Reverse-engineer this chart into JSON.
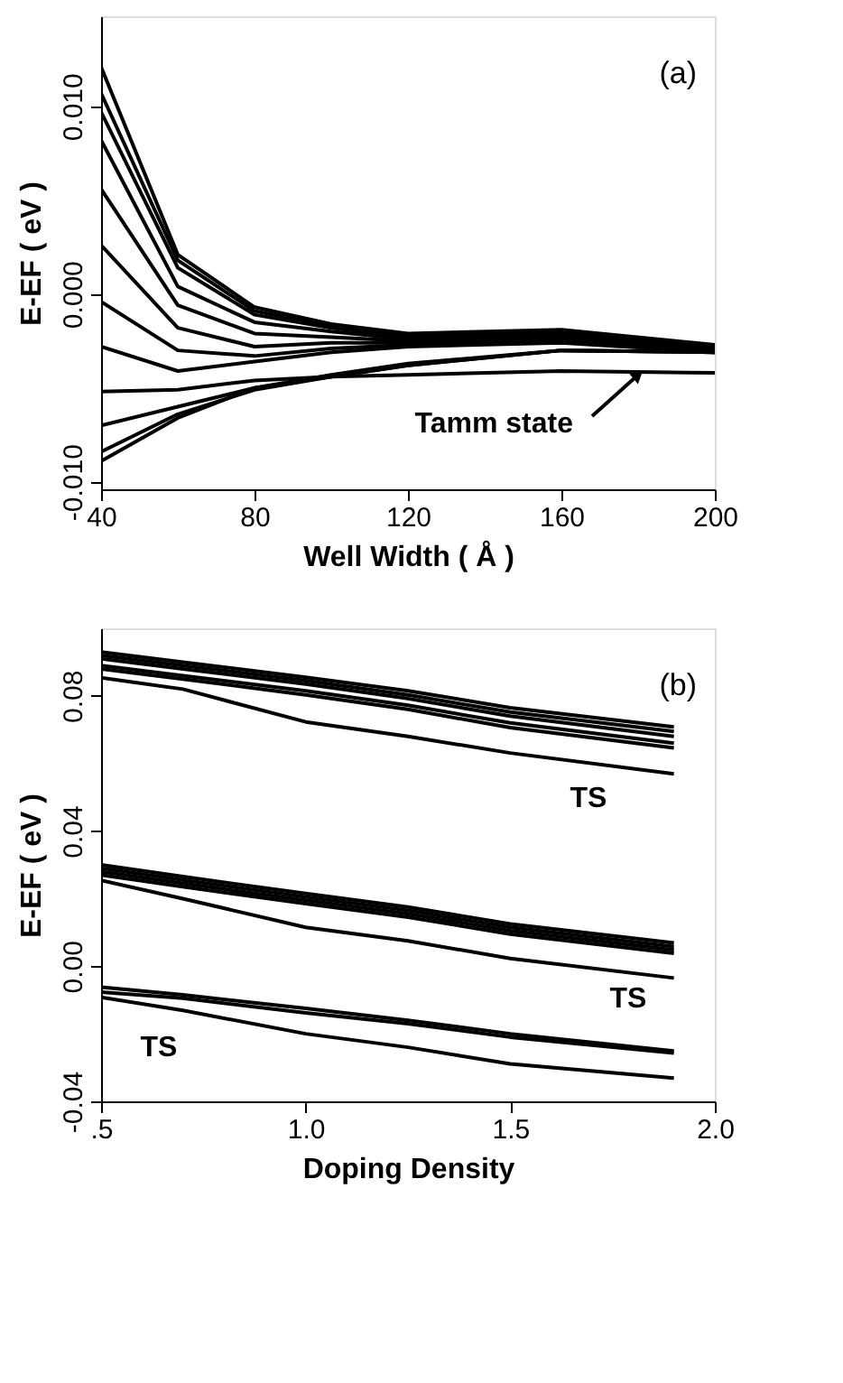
{
  "chart_data": [
    {
      "type": "line",
      "xlabel": "Well Width ( Å )",
      "ylabel": "E-EF  (  eV )",
      "annotations": [
        "(a)",
        {
          "text": "Tamm state",
          "x": 180,
          "y": -0.0043
        }
      ],
      "x": [
        40,
        60,
        80,
        100,
        120,
        160,
        200
      ],
      "xlim": [
        40,
        200
      ],
      "xticks": [
        40,
        80,
        120,
        160,
        200
      ],
      "ylim": [
        -0.0104,
        0.0148
      ],
      "yticks": [
        {
          "value": -0.01,
          "label": "-0.010"
        },
        {
          "value": 0,
          "label": "0.000"
        },
        {
          "value": 0.01,
          "label": "0.010"
        }
      ],
      "grid": false,
      "legend": false,
      "series": [
        {
          "color": "#000000",
          "values": [
            0.0121,
            0.0021,
            -0.0007,
            -0.0016,
            -0.0021,
            -0.0019,
            -0.0027
          ]
        },
        {
          "color": "#000000",
          "values": [
            0.0107,
            0.0018,
            -0.0009,
            -0.0017,
            -0.0022,
            -0.002,
            -0.0028
          ]
        },
        {
          "color": "#000000",
          "values": [
            0.0097,
            0.0014,
            -0.0011,
            -0.0018,
            -0.0023,
            -0.0021,
            -0.0028
          ]
        },
        {
          "color": "#000000",
          "values": [
            0.0082,
            0.0004,
            -0.0015,
            -0.002,
            -0.0024,
            -0.0022,
            -0.0029
          ]
        },
        {
          "color": "#000000",
          "values": [
            0.0056,
            -0.0006,
            -0.0021,
            -0.0023,
            -0.0025,
            -0.0023,
            -0.0029
          ]
        },
        {
          "color": "#000000",
          "values": [
            0.0026,
            -0.0018,
            -0.0028,
            -0.0026,
            -0.0026,
            -0.0024,
            -0.003
          ]
        },
        {
          "color": "#000000",
          "values": [
            -0.0004,
            -0.003,
            -0.0033,
            -0.0029,
            -0.0027,
            -0.0025,
            -0.003
          ]
        },
        {
          "color": "#000000",
          "values": [
            -0.0028,
            -0.0041,
            -0.0036,
            -0.0031,
            -0.0028,
            -0.0026,
            -0.0031
          ]
        },
        {
          "color": "#000000",
          "values": [
            -0.0052,
            -0.0051,
            -0.0046,
            -0.0044,
            -0.0043,
            -0.0041,
            -0.0042
          ]
        },
        {
          "color": "#000000",
          "values": [
            -0.007,
            -0.006,
            -0.005,
            -0.0043,
            -0.0037,
            -0.003,
            -0.0031
          ]
        },
        {
          "color": "#000000",
          "values": [
            -0.0084,
            -0.0064,
            -0.0051,
            -0.0044,
            -0.0038,
            -0.003,
            -0.0031
          ]
        },
        {
          "color": "#000000",
          "values": [
            -0.0089,
            -0.0066,
            -0.005,
            -0.0044,
            -0.0038,
            -0.003,
            -0.0031
          ]
        }
      ]
    },
    {
      "type": "line",
      "xlabel": "Doping Density",
      "ylabel": "E-EF  (  eV )",
      "annotations": [
        "(b)",
        "TS",
        "TS",
        "TS"
      ],
      "x": [
        0.5,
        0.7,
        1.0,
        1.25,
        1.5,
        1.9
      ],
      "xlim": [
        0.5,
        2.0
      ],
      "xticks": [
        {
          "value": 0.5,
          "label": ".5"
        },
        {
          "value": 1,
          "label": "1.0"
        },
        1.5,
        {
          "value": 2,
          "label": "2.0"
        }
      ],
      "ylim": [
        -0.04,
        0.1
      ],
      "yticks": [
        {
          "value": -0.04,
          "label": "-0.04"
        },
        {
          "value": 0,
          "label": "0.00"
        },
        0.04,
        0.08
      ],
      "grid": false,
      "legend": false,
      "series": [
        {
          "color": "#000000",
          "values": [
            0.093,
            0.09,
            0.0855,
            0.0815,
            0.0765,
            0.0708
          ]
        },
        {
          "color": "#000000",
          "values": [
            0.092,
            0.089,
            0.0845,
            0.0803,
            0.0752,
            0.0695
          ]
        },
        {
          "color": "#000000",
          "values": [
            0.091,
            0.088,
            0.0835,
            0.0792,
            0.074,
            0.068
          ]
        },
        {
          "color": "#000000",
          "values": [
            0.089,
            0.086,
            0.0815,
            0.0772,
            0.072,
            0.066
          ]
        },
        {
          "color": "#000000",
          "values": [
            0.088,
            0.085,
            0.0803,
            0.076,
            0.0706,
            0.0646
          ]
        },
        {
          "color": "#000000",
          "values": [
            0.0854,
            0.082,
            0.0723,
            0.068,
            0.0631,
            0.0569
          ]
        },
        {
          "color": "#000000",
          "values": [
            0.03,
            0.0265,
            0.0215,
            0.0175,
            0.0125,
            0.0069
          ]
        },
        {
          "color": "#000000",
          "values": [
            0.029,
            0.0255,
            0.0205,
            0.0165,
            0.0115,
            0.0058
          ]
        },
        {
          "color": "#000000",
          "values": [
            0.028,
            0.0245,
            0.0195,
            0.0155,
            0.0105,
            0.0048
          ]
        },
        {
          "color": "#000000",
          "values": [
            0.027,
            0.0235,
            0.0185,
            0.0145,
            0.0095,
            0.0038
          ]
        },
        {
          "color": "#000000",
          "values": [
            0.0254,
            0.02,
            0.0115,
            0.0075,
            0.0023,
            -0.0035
          ]
        },
        {
          "color": "#000000",
          "values": [
            -0.0062,
            -0.0085,
            -0.0125,
            -0.016,
            -0.02,
            -0.0251
          ]
        },
        {
          "color": "#000000",
          "values": [
            -0.0077,
            -0.0095,
            -0.0138,
            -0.017,
            -0.021,
            -0.0257
          ]
        },
        {
          "color": "#000000",
          "values": [
            -0.0092,
            -0.0131,
            -0.02,
            -0.024,
            -0.0289,
            -0.0331
          ]
        }
      ]
    }
  ]
}
